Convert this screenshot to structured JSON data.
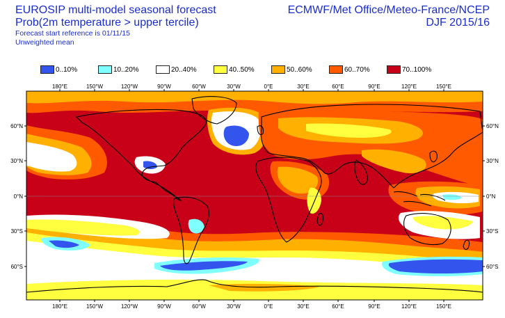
{
  "header": {
    "title_line1": "EUROSIP multi-model seasonal forecast",
    "title_line2": "Prob(2m temperature > upper tercile)",
    "reference": "Forecast start reference is 01/11/15",
    "mean_type": "Unweighted mean",
    "centres": "ECMWF/Met Office/Meteo-France/NCEP",
    "season": "DJF 2015/16"
  },
  "legend": [
    {
      "label": "0..10%",
      "color": "#3355ee"
    },
    {
      "label": "10..20%",
      "color": "#7fffff"
    },
    {
      "label": "20..40%",
      "color": "#ffffff"
    },
    {
      "label": "40..50%",
      "color": "#ffff40"
    },
    {
      "label": "50..60%",
      "color": "#ffb000"
    },
    {
      "label": "60..70%",
      "color": "#ff5a00"
    },
    {
      "label": "70..100%",
      "color": "#c80018"
    }
  ],
  "map": {
    "lon_labels": [
      "180°E",
      "150°W",
      "120°W",
      "90°W",
      "60°W",
      "30°W",
      "0°E",
      "30°E",
      "60°E",
      "90°E",
      "120°E",
      "150°E"
    ],
    "lat_labels": [
      "60°N",
      "30°N",
      "0°N",
      "30°S",
      "60°S"
    ]
  }
}
